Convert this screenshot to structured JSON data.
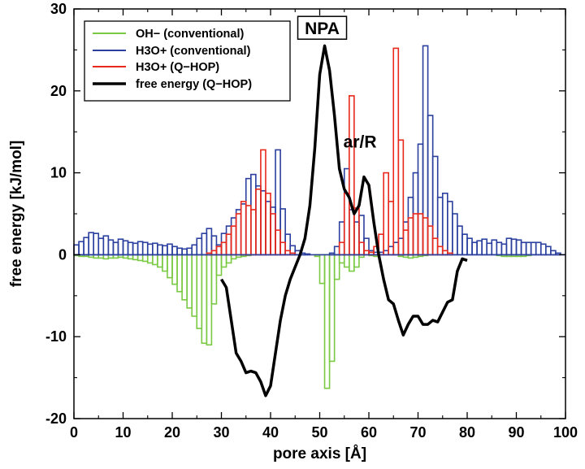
{
  "chart_data": {
    "type": "bar",
    "xlabel": "pore axis [Å]",
    "ylabel": "free energy [kJ/mol]",
    "xlim": [
      0,
      100
    ],
    "ylim": [
      -20,
      30
    ],
    "xticks": [
      "0",
      "10",
      "20",
      "30",
      "40",
      "50",
      "60",
      "70",
      "80",
      "90",
      "100"
    ],
    "yticks": [
      "-20",
      "-10",
      "0",
      "10",
      "20",
      "30"
    ],
    "grid": false,
    "legend_position": "top-left",
    "bin_width": 1,
    "series": [
      {
        "name": "OH− (conventional)",
        "kind": "histogram",
        "color": "#7ac943",
        "bins": [
          [
            0,
            -0.1
          ],
          [
            1,
            -0.2
          ],
          [
            2,
            -0.2
          ],
          [
            3,
            -0.3
          ],
          [
            4,
            -0.4
          ],
          [
            5,
            -0.4
          ],
          [
            6,
            -0.5
          ],
          [
            7,
            -0.4
          ],
          [
            8,
            -0.4
          ],
          [
            9,
            -0.3
          ],
          [
            10,
            -0.4
          ],
          [
            11,
            -0.5
          ],
          [
            12,
            -0.6
          ],
          [
            13,
            -0.7
          ],
          [
            14,
            -0.8
          ],
          [
            15,
            -1.0
          ],
          [
            16,
            -1.2
          ],
          [
            17,
            -1.5
          ],
          [
            18,
            -2.0
          ],
          [
            19,
            -2.8
          ],
          [
            20,
            -3.6
          ],
          [
            21,
            -4.5
          ],
          [
            22,
            -5.5
          ],
          [
            23,
            -6.5
          ],
          [
            24,
            -7.5
          ],
          [
            25,
            -9.0
          ],
          [
            26,
            -10.8
          ],
          [
            27,
            -11.0
          ],
          [
            28,
            -6.0
          ],
          [
            29,
            -2.5
          ],
          [
            30,
            -1.5
          ],
          [
            31,
            -1.0
          ],
          [
            32,
            -0.5
          ],
          [
            33,
            -0.3
          ],
          [
            34,
            -0.2
          ],
          [
            35,
            -0.1
          ],
          [
            49,
            -0.2
          ],
          [
            50,
            -3.5
          ],
          [
            51,
            -16.3
          ],
          [
            52,
            -13.0
          ],
          [
            53,
            -3.0
          ],
          [
            54,
            -1.0
          ],
          [
            55,
            -1.5
          ],
          [
            56,
            -2.0
          ],
          [
            57,
            -1.5
          ],
          [
            58,
            -0.3
          ],
          [
            60,
            -0.1
          ],
          [
            61,
            -0.2
          ],
          [
            66,
            -0.2
          ],
          [
            67,
            -0.3
          ],
          [
            68,
            -0.4
          ],
          [
            69,
            -0.3
          ],
          [
            70,
            -0.2
          ],
          [
            71,
            -0.1
          ],
          [
            86,
            -0.1
          ],
          [
            87,
            -0.2
          ],
          [
            88,
            -0.2
          ],
          [
            89,
            -0.2
          ],
          [
            90,
            -0.2
          ],
          [
            91,
            -0.2
          ],
          [
            92,
            -0.1
          ]
        ]
      },
      {
        "name": "H3O+ (conventional)",
        "kind": "histogram",
        "color": "#2a3f9e",
        "bins": [
          [
            0,
            1.2
          ],
          [
            1,
            1.6
          ],
          [
            2,
            2.1
          ],
          [
            3,
            2.7
          ],
          [
            4,
            2.6
          ],
          [
            5,
            2.0
          ],
          [
            6,
            2.3
          ],
          [
            7,
            1.8
          ],
          [
            8,
            1.5
          ],
          [
            9,
            1.9
          ],
          [
            10,
            1.7
          ],
          [
            11,
            1.5
          ],
          [
            12,
            1.4
          ],
          [
            13,
            1.6
          ],
          [
            14,
            1.5
          ],
          [
            15,
            1.3
          ],
          [
            16,
            1.4
          ],
          [
            17,
            1.2
          ],
          [
            18,
            1.1
          ],
          [
            19,
            1.3
          ],
          [
            20,
            1.0
          ],
          [
            21,
            0.8
          ],
          [
            22,
            0.7
          ],
          [
            23,
            0.8
          ],
          [
            24,
            1.2
          ],
          [
            25,
            2.0
          ],
          [
            26,
            2.6
          ],
          [
            27,
            3.2
          ],
          [
            28,
            2.3
          ],
          [
            29,
            1.2
          ],
          [
            30,
            2.6
          ],
          [
            31,
            3.5
          ],
          [
            32,
            4.5
          ],
          [
            33,
            5.5
          ],
          [
            34,
            6.2
          ],
          [
            35,
            9.3
          ],
          [
            36,
            9.8
          ],
          [
            37,
            8.4
          ],
          [
            38,
            7.8
          ],
          [
            39,
            6.5
          ],
          [
            40,
            5.8
          ],
          [
            41,
            12.8
          ],
          [
            42,
            5.6
          ],
          [
            43,
            2.5
          ],
          [
            44,
            1.1
          ],
          [
            45,
            0.5
          ],
          [
            46,
            0.2
          ],
          [
            47,
            0.1
          ],
          [
            52,
            0.2
          ],
          [
            53,
            1.0
          ],
          [
            54,
            4.0
          ],
          [
            55,
            10.5
          ],
          [
            56,
            5.5
          ],
          [
            57,
            4.0
          ],
          [
            58,
            4.8
          ],
          [
            59,
            2.0
          ],
          [
            60,
            0.5
          ],
          [
            61,
            0.3
          ],
          [
            62,
            0.3
          ],
          [
            63,
            0.5
          ],
          [
            64,
            1.0
          ],
          [
            65,
            1.5
          ],
          [
            66,
            2.0
          ],
          [
            67,
            4.0
          ],
          [
            68,
            7.0
          ],
          [
            69,
            10.0
          ],
          [
            70,
            13.5
          ],
          [
            71,
            25.5
          ],
          [
            72,
            17.0
          ],
          [
            73,
            12.0
          ],
          [
            74,
            7.0
          ],
          [
            75,
            7.5
          ],
          [
            76,
            6.5
          ],
          [
            77,
            5.0
          ],
          [
            78,
            3.5
          ],
          [
            79,
            2.5
          ],
          [
            80,
            2.0
          ],
          [
            81,
            1.5
          ],
          [
            82,
            1.7
          ],
          [
            83,
            1.9
          ],
          [
            84,
            1.4
          ],
          [
            85,
            1.8
          ],
          [
            86,
            1.5
          ],
          [
            87,
            1.3
          ],
          [
            88,
            2.0
          ],
          [
            89,
            1.9
          ],
          [
            90,
            1.8
          ],
          [
            91,
            1.5
          ],
          [
            92,
            1.5
          ],
          [
            93,
            1.5
          ],
          [
            94,
            1.5
          ],
          [
            95,
            1.3
          ],
          [
            96,
            1.0
          ],
          [
            97,
            0.5
          ],
          [
            98,
            0.2
          ]
        ]
      },
      {
        "name": "H3O+ (Q−HOP)",
        "kind": "histogram",
        "color": "#e8291c",
        "bins": [
          [
            27,
            0.2
          ],
          [
            28,
            0.5
          ],
          [
            29,
            1.0
          ],
          [
            30,
            1.5
          ],
          [
            31,
            2.5
          ],
          [
            32,
            3.5
          ],
          [
            33,
            5.0
          ],
          [
            34,
            6.5
          ],
          [
            35,
            6.0
          ],
          [
            36,
            5.5
          ],
          [
            37,
            8.0
          ],
          [
            38,
            12.8
          ],
          [
            39,
            7.5
          ],
          [
            40,
            5.0
          ],
          [
            41,
            3.0
          ],
          [
            42,
            1.5
          ],
          [
            43,
            0.5
          ],
          [
            44,
            0.2
          ],
          [
            54,
            1.5
          ],
          [
            55,
            7.5
          ],
          [
            56,
            19.4
          ],
          [
            57,
            5.7
          ],
          [
            58,
            1.5
          ],
          [
            59,
            0.5
          ],
          [
            60,
            0.3
          ],
          [
            61,
            1.0
          ],
          [
            62,
            2.5
          ],
          [
            63,
            10.0
          ],
          [
            64,
            6.5
          ],
          [
            65,
            25.2
          ],
          [
            66,
            14.0
          ],
          [
            67,
            3.0
          ],
          [
            68,
            4.5
          ],
          [
            69,
            5.0
          ],
          [
            70,
            5.0
          ],
          [
            71,
            4.5
          ],
          [
            72,
            3.5
          ],
          [
            73,
            2.0
          ],
          [
            74,
            1.0
          ],
          [
            75,
            0.5
          ],
          [
            76,
            0.2
          ]
        ]
      },
      {
        "name": "free energy (Q−HOP)",
        "kind": "line",
        "color": "#000000",
        "points": [
          [
            30,
            -3
          ],
          [
            31,
            -4
          ],
          [
            32,
            -8
          ],
          [
            33,
            -12
          ],
          [
            34,
            -13
          ],
          [
            35,
            -14.4
          ],
          [
            36,
            -14.2
          ],
          [
            37,
            -14.4
          ],
          [
            38,
            -15.5
          ],
          [
            39,
            -17.2
          ],
          [
            40,
            -16
          ],
          [
            41,
            -12
          ],
          [
            42,
            -8
          ],
          [
            43,
            -5
          ],
          [
            44,
            -3
          ],
          [
            45,
            -1.5
          ],
          [
            46,
            0
          ],
          [
            47,
            2
          ],
          [
            48,
            6
          ],
          [
            49,
            13
          ],
          [
            50,
            22
          ],
          [
            51,
            25.5
          ],
          [
            52,
            22.5
          ],
          [
            53,
            17
          ],
          [
            54,
            10.5
          ],
          [
            55,
            8
          ],
          [
            56,
            7
          ],
          [
            57,
            5
          ],
          [
            58,
            6
          ],
          [
            59,
            9.5
          ],
          [
            60,
            8.5
          ],
          [
            61,
            4
          ],
          [
            62,
            0
          ],
          [
            63,
            -3
          ],
          [
            64,
            -5.5
          ],
          [
            65,
            -6
          ],
          [
            66,
            -8
          ],
          [
            67,
            -9.8
          ],
          [
            68,
            -8.5
          ],
          [
            69,
            -7.5
          ],
          [
            70,
            -7.5
          ],
          [
            71,
            -8.5
          ],
          [
            72,
            -8.5
          ],
          [
            73,
            -8
          ],
          [
            74,
            -8.2
          ],
          [
            75,
            -7
          ],
          [
            76,
            -5.8
          ],
          [
            77,
            -5.5
          ],
          [
            78,
            -2
          ],
          [
            79,
            -0.5
          ],
          [
            80,
            -0.7
          ]
        ]
      }
    ],
    "annotations": [
      {
        "text": "NPA",
        "x": 50.5,
        "y": 27.6,
        "boxed": true
      },
      {
        "text": "ar/R",
        "x": 58.2,
        "y": 13.8,
        "boxed": false
      }
    ]
  }
}
